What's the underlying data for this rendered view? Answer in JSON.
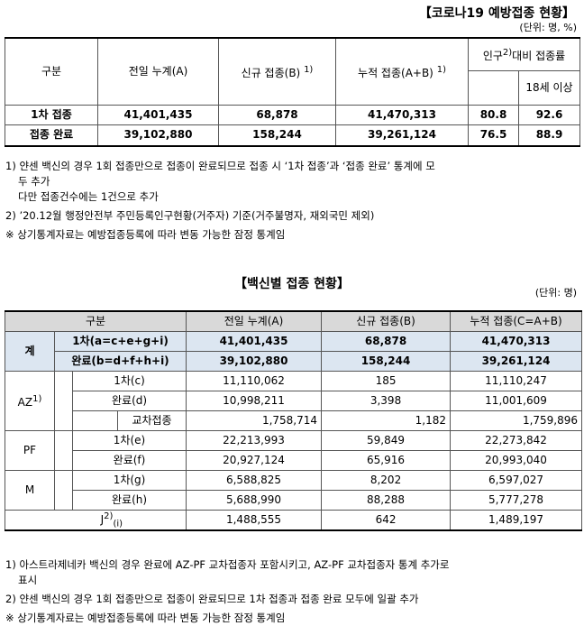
{
  "t1": {
    "title": "【코로나19 예방접종 현황】",
    "unit": "(단위: 명, %)",
    "headers": {
      "category": "구분",
      "prev": "전일 누계(A)",
      "new": "신규 접종(B)",
      "new_sup": "1)",
      "cum": "누적 접종(A+B)",
      "cum_sup": "1)",
      "pop": "인구",
      "pop_sup": "2)",
      "pop2": "대비 접종률",
      "age": "18세 이상"
    },
    "rows": [
      {
        "label": "1차 접종",
        "prev": "41,401,435",
        "new": "68,878",
        "cum": "41,470,313",
        "pop": "80.8",
        "age": "92.6"
      },
      {
        "label": "접종 완료",
        "prev": "39,102,880",
        "new": "158,244",
        "cum": "39,261,124",
        "pop": "76.5",
        "age": "88.9"
      }
    ],
    "notes": [
      "1) 얀센 백신의 경우 1회 접종만으로 접종이 완료되므로 접종 시 ‘1차 접종’과 ‘접종 완료’ 통계에 모",
      "두 추가",
      "다만 접종건수에는 1건으로 추가",
      "2) ’20.12월 행정안전부 주민등록인구현황(거주자) 기준(거주불명자, 재외국민 제외)",
      "※ 상기통계자료는 예방접종등록에 따라 변동 가능한 잠정 통계임"
    ]
  },
  "t2": {
    "title": "【백신별 접종 현황】",
    "unit": "(단위: 명)",
    "headers": {
      "category": "구분",
      "prev": "전일 누계(A)",
      "new": "신규 접종(B)",
      "cum": "누적 접종(C=A+B)"
    },
    "total": {
      "label": "계",
      "r1": {
        "label": "1차(a=c+e+g+i)",
        "prev": "41,401,435",
        "new": "68,878",
        "cum": "41,470,313"
      },
      "r2": {
        "label": "완료(b=d+f+h+i)",
        "prev": "39,102,880",
        "new": "158,244",
        "cum": "39,261,124"
      }
    },
    "az": {
      "label": "AZ",
      "sup": "1)",
      "r1": {
        "label": "1차(c)",
        "prev": "11,110,062",
        "new": "185",
        "cum": "11,110,247"
      },
      "r2": {
        "label": "완료(d)",
        "prev": "10,998,211",
        "new": "3,398",
        "cum": "11,001,609"
      },
      "r3": {
        "label": "교차접종",
        "prev": "1,758,714",
        "new": "1,182",
        "cum": "1,759,896"
      }
    },
    "pf": {
      "label": "PF",
      "r1": {
        "label": "1차(e)",
        "prev": "22,213,993",
        "new": "59,849",
        "cum": "22,273,842"
      },
      "r2": {
        "label": "완료(f)",
        "prev": "20,927,124",
        "new": "65,916",
        "cum": "20,993,040"
      }
    },
    "m": {
      "label": "M",
      "r1": {
        "label": "1차(g)",
        "prev": "6,588,825",
        "new": "8,202",
        "cum": "6,597,027"
      },
      "r2": {
        "label": "완료(h)",
        "prev": "5,688,990",
        "new": "88,288",
        "cum": "5,777,278"
      }
    },
    "j": {
      "label": "J",
      "sup": "2)",
      "sub": "(i)",
      "prev": "1,488,555",
      "new": "642",
      "cum": "1,489,197"
    },
    "notes": [
      "1) 아스트라제네카 백신의 경우 완료에 AZ-PF 교차접종자 포함시키고, AZ-PF 교차접종자 통계 추가로",
      "표시",
      "2) 얀센 백신의 경우 1회 접종만으로 접종이 완료되므로 1차 접종과 접종 완료 모두에 일괄 추가",
      "※ 상기통계자료는 예방접종등록에 따라 변동 가능한 잠정 통계임"
    ]
  }
}
